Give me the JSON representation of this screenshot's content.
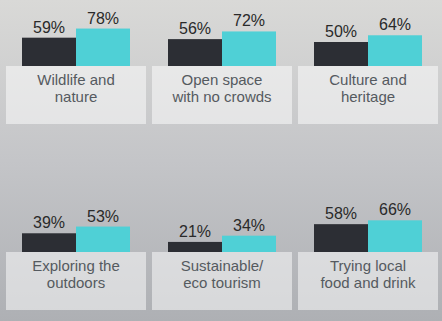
{
  "chart_data": {
    "type": "bar",
    "categories": [
      "Wildlife and nature",
      "Open space with no crowds",
      "Culture and heritage",
      "Exploring the outdoors",
      "Sustainable/ eco tourism",
      "Trying local food and drink"
    ],
    "series": [
      {
        "color": "#2c2e34",
        "values": [
          59,
          56,
          50,
          39,
          21,
          58
        ],
        "value_labels": [
          "59%",
          "56%",
          "50%",
          "39%",
          "21%",
          "58%"
        ]
      },
      {
        "color": "#4fd0d6",
        "values": [
          78,
          72,
          64,
          53,
          34,
          66
        ],
        "value_labels": [
          "78%",
          "72%",
          "64%",
          "53%",
          "34%",
          "66%"
        ]
      }
    ],
    "ylim": [
      0,
      100
    ],
    "data_labels": true,
    "tick_labels": false
  }
}
